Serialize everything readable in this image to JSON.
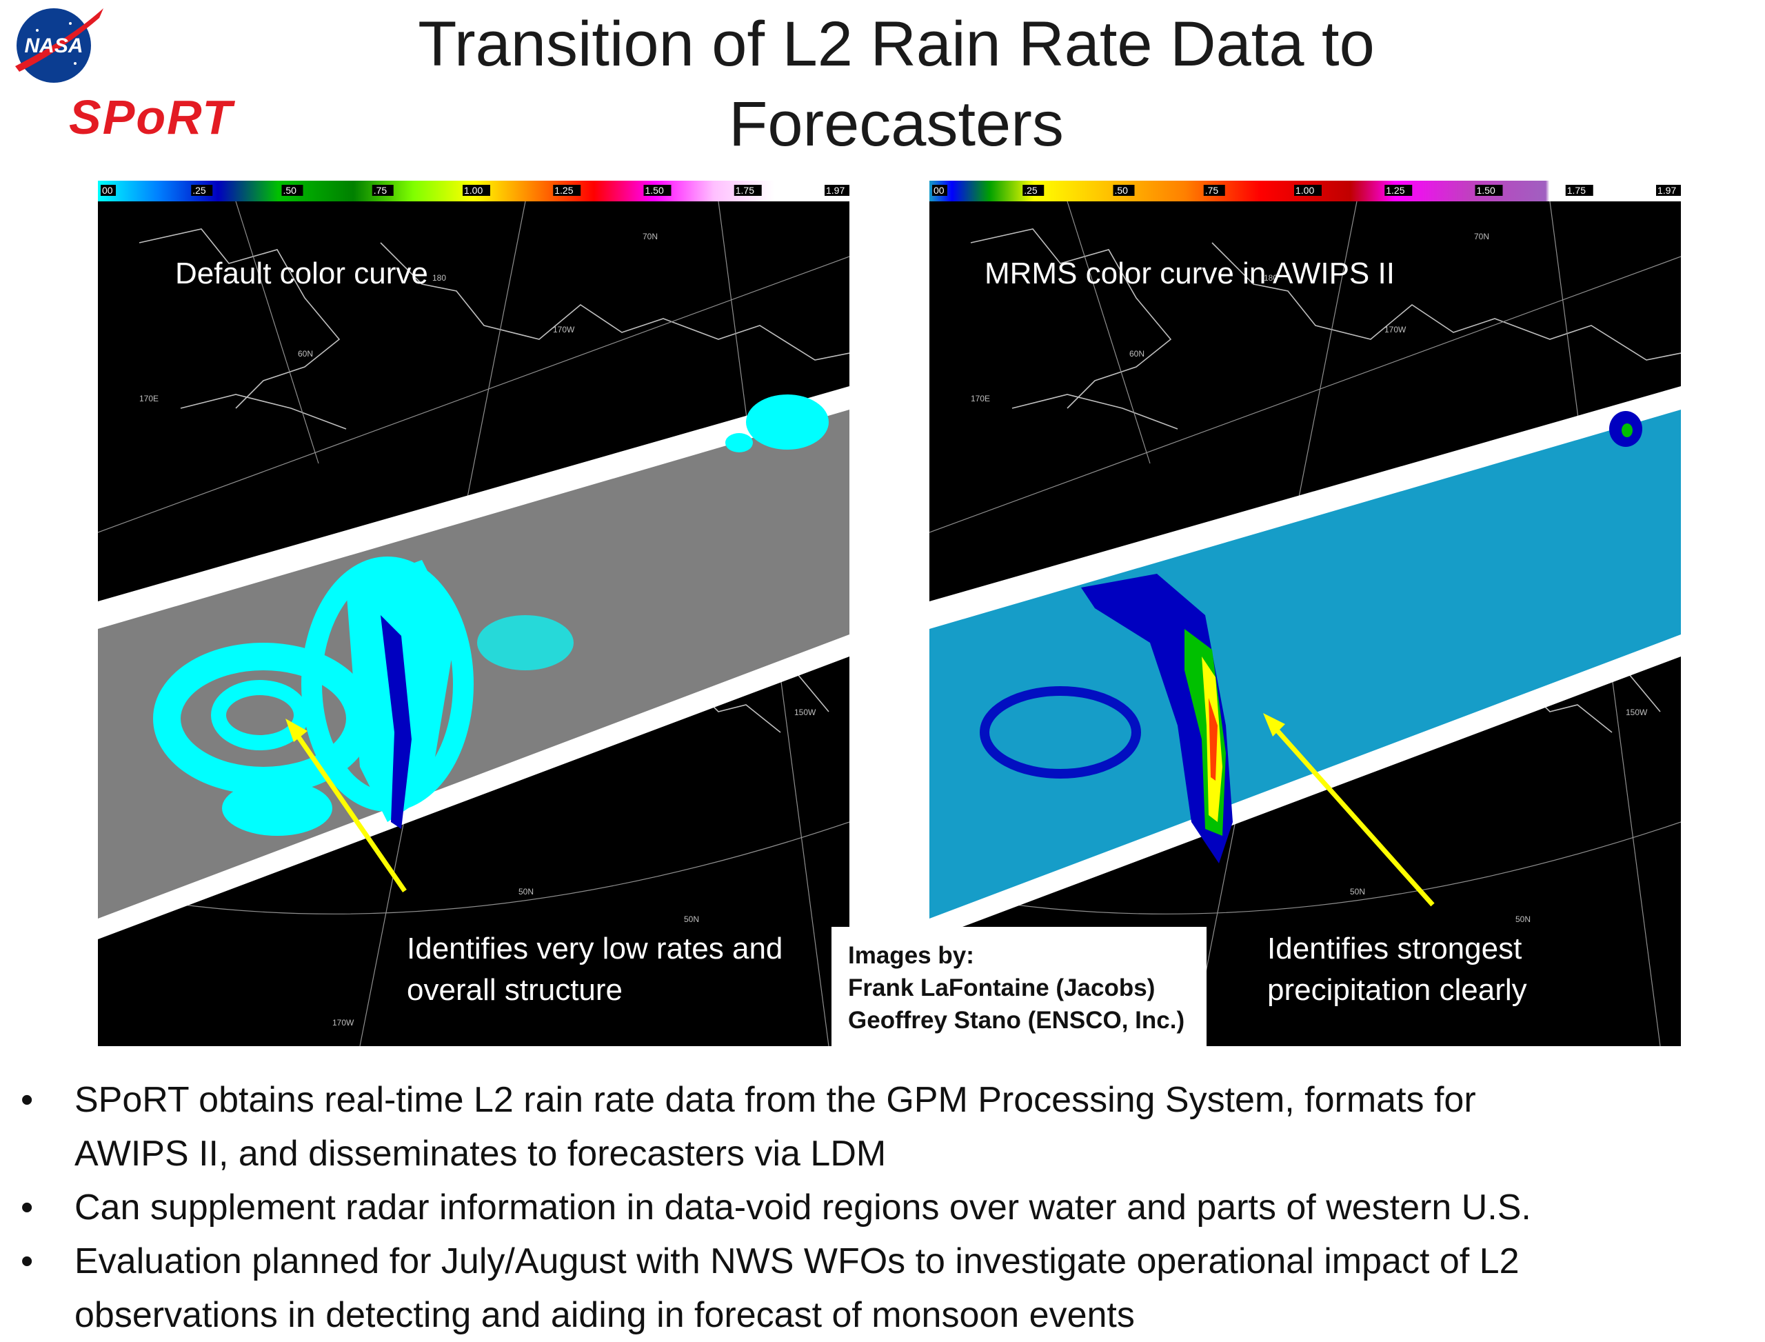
{
  "title": "Transition of L2 Rain Rate Data to Forecasters",
  "logos": {
    "nasa": "NASA",
    "sport": "SPoRT"
  },
  "colors": {
    "band_left": "#7f7f7f",
    "band_right": "#169dc8",
    "highlight_arrow": "#ffff00",
    "sport_red": "#e31b23",
    "nasa_blue": "#0b3d91"
  },
  "colorbar_ticks": [
    "00",
    ".25",
    ".50",
    ".75",
    "1.00",
    "1.25",
    "1.50",
    "1.75",
    "1.97"
  ],
  "map_labels": [
    "70N",
    "60N",
    "50N",
    "170E",
    "180",
    "170W",
    "150W",
    "50N",
    "170W"
  ],
  "panels": {
    "left": {
      "label": "Default color curve",
      "caption": [
        "Identifies very low rates and",
        "overall structure"
      ]
    },
    "right": {
      "label": "MRMS color curve in AWIPS II",
      "caption": [
        "Identifies strongest",
        "precipitation clearly"
      ]
    }
  },
  "credits": [
    "Images by:",
    "Frank LaFontaine (Jacobs)",
    "Geoffrey Stano (ENSCO, Inc.)"
  ],
  "bullet_symbol": "•",
  "bullets": [
    [
      "SPoRT obtains real-time L2 rain rate data from the GPM Processing System, formats for",
      "AWIPS II, and disseminates to forecasters via LDM"
    ],
    [
      "Can supplement radar information in data-void regions over water and parts of western U.S."
    ],
    [
      "Evaluation planned for July/August with NWS WFOs to investigate operational impact of L2",
      "observations in detecting and aiding in forecast of monsoon events"
    ]
  ]
}
